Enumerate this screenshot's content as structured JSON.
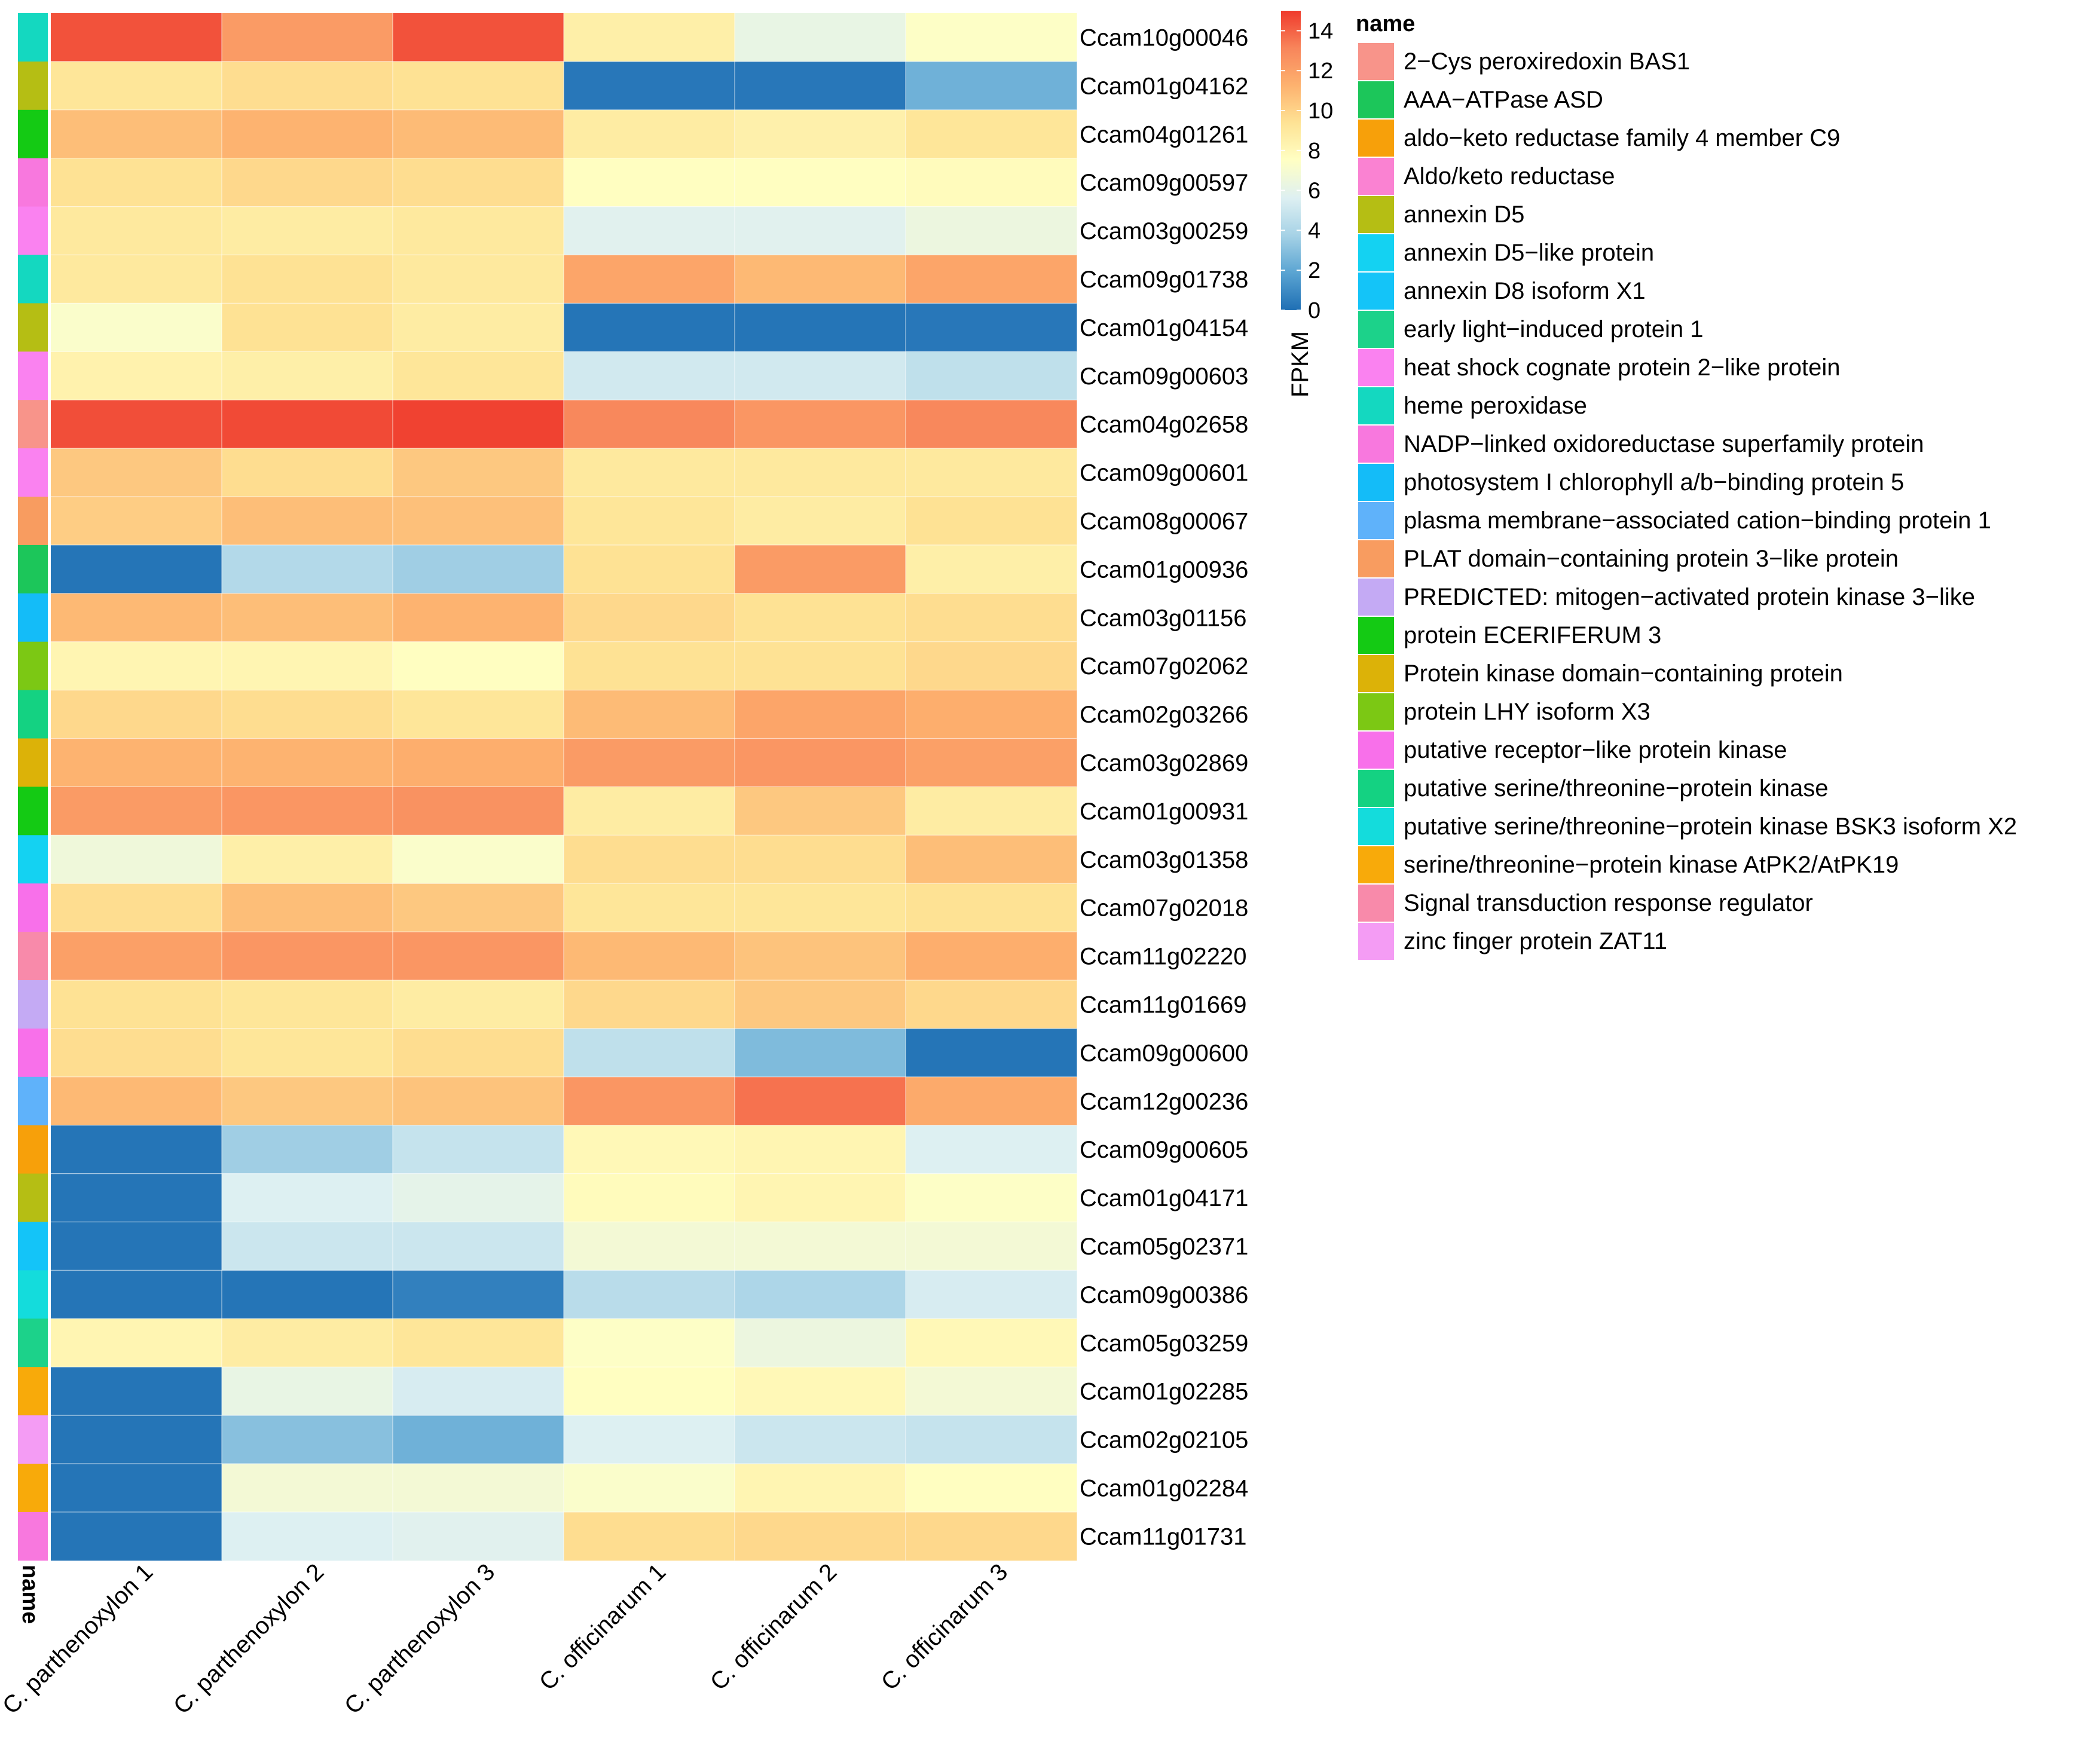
{
  "chart_data": {
    "type": "heatmap",
    "columns": [
      "C. parthenoxylon 1",
      "C. parthenoxylon 2",
      "C. parthenoxylon 3",
      "C. officinarum 1",
      "C. officinarum 2",
      "C. officinarum 3"
    ],
    "annotation_label": "name",
    "rows": [
      {
        "gene": "Ccam10g00046",
        "annotation": "heme peroxidase",
        "values": [
          14.4,
          12.2,
          14.4,
          8.6,
          6.2,
          7.4
        ]
      },
      {
        "gene": "Ccam01g04162",
        "annotation": "annexin D5",
        "values": [
          9.2,
          9.6,
          9.4,
          0.3,
          0.3,
          2.4
        ]
      },
      {
        "gene": "Ccam04g01261",
        "annotation": "protein ECERIFERUM 3",
        "values": [
          10.8,
          11.2,
          10.9,
          8.8,
          8.5,
          9.2
        ]
      },
      {
        "gene": "Ccam09g00597",
        "annotation": "NADP−linked oxidoreductase superfamily protein",
        "values": [
          9.4,
          9.8,
          9.6,
          7.6,
          7.6,
          7.8
        ]
      },
      {
        "gene": "Ccam03g00259",
        "annotation": "heat shock cognate protein 2−like protein",
        "values": [
          9.0,
          8.8,
          9.0,
          5.8,
          5.8,
          6.4
        ]
      },
      {
        "gene": "Ccam09g01738",
        "annotation": "heme peroxidase",
        "values": [
          9.0,
          9.4,
          9.0,
          11.8,
          11.0,
          11.8
        ]
      },
      {
        "gene": "Ccam01g04154",
        "annotation": "annexin D5",
        "values": [
          7.2,
          9.4,
          8.8,
          0.2,
          0.2,
          0.3
        ]
      },
      {
        "gene": "Ccam09g00603",
        "annotation": "heat shock cognate protein 2−like protein",
        "values": [
          8.4,
          8.6,
          9.2,
          5.2,
          5.2,
          4.6
        ]
      },
      {
        "gene": "Ccam04g02658",
        "annotation": "2−Cys peroxiredoxin BAS1",
        "values": [
          14.5,
          14.6,
          14.8,
          13.0,
          12.4,
          13.0
        ]
      },
      {
        "gene": "Ccam09g00601",
        "annotation": "heat shock cognate protein 2−like protein",
        "values": [
          10.4,
          9.6,
          10.4,
          9.0,
          9.0,
          9.0
        ]
      },
      {
        "gene": "Ccam08g00067",
        "annotation": "PLAT domain−containing protein 3−like protein",
        "values": [
          10.2,
          10.8,
          10.7,
          9.2,
          8.8,
          9.4
        ]
      },
      {
        "gene": "Ccam01g00936",
        "annotation": "AAA−ATPase ASD",
        "values": [
          0.2,
          4.2,
          3.6,
          9.4,
          12.2,
          8.6
        ]
      },
      {
        "gene": "Ccam03g01156",
        "annotation": "photosystem I chlorophyll a/b−binding protein 5",
        "values": [
          11.0,
          10.8,
          11.2,
          9.8,
          9.4,
          9.6
        ]
      },
      {
        "gene": "Ccam07g02062",
        "annotation": "protein LHY isoform X3",
        "values": [
          8.2,
          8.2,
          7.6,
          9.4,
          9.4,
          9.8
        ]
      },
      {
        "gene": "Ccam02g03266",
        "annotation": "putative serine/threonine−protein kinase",
        "values": [
          9.8,
          9.6,
          9.2,
          10.9,
          11.8,
          11.4
        ]
      },
      {
        "gene": "Ccam03g02869",
        "annotation": "Protein kinase domain−containing protein",
        "values": [
          11.2,
          11.2,
          11.4,
          12.2,
          12.4,
          12.0
        ]
      },
      {
        "gene": "Ccam01g00931",
        "annotation": "protein ECERIFERUM 3",
        "values": [
          12.2,
          12.4,
          12.6,
          8.8,
          10.4,
          8.8
        ]
      },
      {
        "gene": "Ccam03g01358",
        "annotation": "annexin D5−like protein",
        "values": [
          6.6,
          8.6,
          7.2,
          9.6,
          9.6,
          10.8
        ]
      },
      {
        "gene": "Ccam07g02018",
        "annotation": "putative receptor−like protein kinase",
        "values": [
          9.6,
          10.8,
          10.4,
          9.2,
          9.2,
          9.4
        ]
      },
      {
        "gene": "Ccam11g02220",
        "annotation": "Signal transduction response regulator",
        "values": [
          12.0,
          12.4,
          12.4,
          11.0,
          10.6,
          11.4
        ]
      },
      {
        "gene": "Ccam11g01669",
        "annotation": "PREDICTED: mitogen−activated protein kinase 3−like",
        "values": [
          9.4,
          9.2,
          8.8,
          9.8,
          10.4,
          9.8
        ]
      },
      {
        "gene": "Ccam09g00600",
        "annotation": "putative receptor−like protein kinase",
        "values": [
          9.6,
          9.2,
          9.6,
          4.6,
          2.8,
          0.2
        ]
      },
      {
        "gene": "Ccam12g00236",
        "annotation": "plasma membrane−associated cation−binding protein 1",
        "values": [
          11.0,
          10.4,
          10.6,
          12.4,
          13.6,
          11.6
        ]
      },
      {
        "gene": "Ccam09g00605",
        "annotation": "aldo−keto reductase family 4 member C9",
        "values": [
          0.2,
          3.6,
          4.8,
          8.0,
          8.2,
          5.6
        ]
      },
      {
        "gene": "Ccam01g04171",
        "annotation": "annexin D5",
        "values": [
          0.2,
          5.6,
          6.0,
          7.8,
          8.2,
          7.4
        ]
      },
      {
        "gene": "Ccam05g02371",
        "annotation": "annexin D8 isoform X1",
        "values": [
          0.2,
          5.0,
          5.0,
          6.8,
          6.8,
          6.8
        ]
      },
      {
        "gene": "Ccam09g00386",
        "annotation": "putative serine/threonine−protein kinase BSK3 isoform X2",
        "values": [
          0.2,
          0.2,
          0.6,
          4.4,
          4.0,
          5.4
        ]
      },
      {
        "gene": "Ccam05g03259",
        "annotation": "early light−induced protein 1",
        "values": [
          8.2,
          8.8,
          9.2,
          7.4,
          6.4,
          8.0
        ]
      },
      {
        "gene": "Ccam01g02285",
        "annotation": "serine/threonine−protein kinase AtPK2/AtPK19",
        "values": [
          0.2,
          6.2,
          5.4,
          7.6,
          8.0,
          6.8
        ]
      },
      {
        "gene": "Ccam02g02105",
        "annotation": "zinc finger protein ZAT11",
        "values": [
          0.2,
          3.0,
          2.4,
          5.6,
          5.0,
          4.8
        ]
      },
      {
        "gene": "Ccam01g02284",
        "annotation": "serine/threonine−protein kinase AtPK2/AtPK19",
        "values": [
          0.2,
          6.8,
          6.8,
          7.2,
          8.2,
          7.6
        ]
      },
      {
        "gene": "Ccam11g01731",
        "annotation": "NADP−linked oxidoreductase superfamily protein",
        "values": [
          0.2,
          5.6,
          5.8,
          9.6,
          9.8,
          9.8
        ]
      }
    ],
    "colorbar": {
      "title": "FPKM",
      "ticks": [
        0,
        2,
        4,
        6,
        8,
        10,
        12,
        14
      ],
      "range": [
        0,
        15
      ],
      "colors": [
        "#1f6fb4",
        "#5aa4d2",
        "#a6d2e6",
        "#def0f2",
        "#ffffc4",
        "#fee395",
        "#fdb26f",
        "#f8855b",
        "#ef3a2c"
      ]
    },
    "legend": {
      "title": "name",
      "items": [
        {
          "label": "2−Cys peroxiredoxin BAS1",
          "color": "#f8948a"
        },
        {
          "label": "AAA−ATPase ASD",
          "color": "#1cc65a"
        },
        {
          "label": "aldo−keto reductase family 4 member C9",
          "color": "#f7a00a"
        },
        {
          "label": "Aldo/keto reductase",
          "color": "#fa82d2"
        },
        {
          "label": "annexin D5",
          "color": "#b5be14"
        },
        {
          "label": "annexin D5−like protein",
          "color": "#14d2f2"
        },
        {
          "label": "annexin D8 isoform X1",
          "color": "#14c4f8"
        },
        {
          "label": "early light−induced protein 1",
          "color": "#1cd28a"
        },
        {
          "label": "heat shock cognate protein 2−like protein",
          "color": "#fa82f0"
        },
        {
          "label": "heme peroxidase",
          "color": "#14d8c0"
        },
        {
          "label": "NADP−linked oxidoreductase superfamily protein",
          "color": "#f878de"
        },
        {
          "label": "photosystem I chlorophyll a/b−binding protein 5",
          "color": "#14bcf8"
        },
        {
          "label": "plasma membrane−associated cation−binding protein 1",
          "color": "#5fb2fa"
        },
        {
          "label": "PLAT domain−containing protein 3−like protein",
          "color": "#f89c60"
        },
        {
          "label": "PREDICTED: mitogen−activated protein kinase 3−like",
          "color": "#c4aaf4"
        },
        {
          "label": "protein ECERIFERUM 3",
          "color": "#14ca14"
        },
        {
          "label": "Protein kinase domain−containing protein",
          "color": "#dcb208"
        },
        {
          "label": "protein LHY isoform X3",
          "color": "#7cc814"
        },
        {
          "label": "putative receptor−like protein kinase",
          "color": "#f870ea"
        },
        {
          "label": "putative serine/threonine−protein kinase",
          "color": "#14d282"
        },
        {
          "label": "putative serine/threonine−protein kinase BSK3 isoform X2",
          "color": "#14dcdc"
        },
        {
          "label": "serine/threonine−protein kinase AtPK2/AtPK19",
          "color": "#f8aa0a"
        },
        {
          "label": "Signal transduction response regulator",
          "color": "#f88aaa"
        },
        {
          "label": "zinc finger protein ZAT11",
          "color": "#f49cf4"
        }
      ]
    }
  }
}
